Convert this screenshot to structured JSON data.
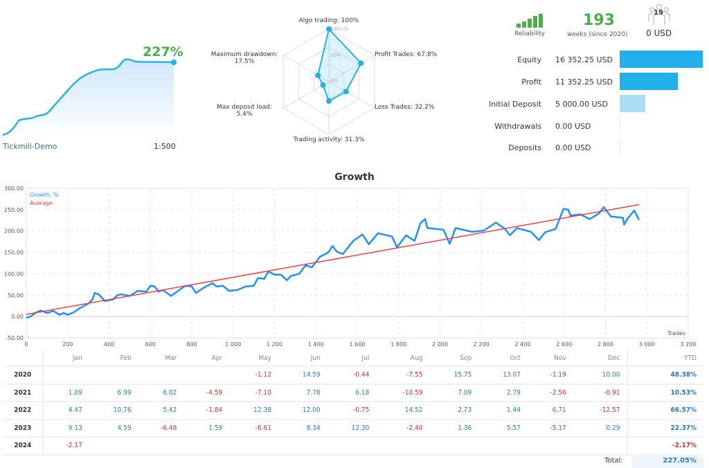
{
  "summary": {
    "growth": "227%",
    "server": "Tickmill-Demo",
    "leverage": "1:500"
  },
  "radar": {
    "scale_labels": [
      "100+%",
      "50%",
      "0%"
    ],
    "axes": [
      {
        "label": "Algo trading: 100%",
        "value": 100
      },
      {
        "label": "Profit Trades: 67.8%",
        "value": 67.8
      },
      {
        "label": "Loss Trades: 32.2%",
        "value": 32.2
      },
      {
        "label": "Trading activity: 31.3%",
        "value": 31.3
      },
      {
        "label_1": "Max deposit load:",
        "label_2": "5.4%",
        "value": 5.4
      },
      {
        "label_1": "Maximum drawdown:",
        "label_2": "17.5%",
        "value": 17.5
      }
    ]
  },
  "stats": {
    "reliability_label": "Reliability",
    "weeks": "193",
    "weeks_label": "weeks (since 2020)",
    "subscribers": "19",
    "subscription_price": "0 USD"
  },
  "finance": [
    {
      "label": "Equity",
      "value": "16 352.25 USD",
      "amount": 16352.25
    },
    {
      "label": "Profit",
      "value": "11 352.25 USD",
      "amount": 11352.25
    },
    {
      "label": "Initial Deposit",
      "value": "5 000.00 USD",
      "amount": 5000
    },
    {
      "label": "Withdrawals",
      "value": "0.00 USD",
      "amount": 0
    },
    {
      "label": "Deposits",
      "value": "0.00 USD",
      "amount": 0
    }
  ],
  "colors": {
    "blue": "#1e90ff",
    "accent": "#22b0ea",
    "red": "#e84040",
    "green": "#4cae4c"
  },
  "chart_data": {
    "type": "line",
    "title": "Growth",
    "xlabel": "Trades",
    "ylabel": "",
    "xlim": [
      0,
      3200
    ],
    "ylim": [
      -50,
      300
    ],
    "xticks": [
      "0",
      "200",
      "400",
      "600",
      "800",
      "1 000",
      "1 200",
      "1 400",
      "1 600",
      "1 800",
      "2 000",
      "2 200",
      "2 400",
      "2 600",
      "2 800",
      "3 000",
      "3 200"
    ],
    "yticks": [
      "300.00",
      "250.00",
      "200.00",
      "150.00",
      "100.00",
      "50.00",
      "0.00",
      "-50.00"
    ],
    "legend": [
      "Growth, %",
      "Average"
    ],
    "legend_position": "top-left",
    "series": [
      {
        "name": "Growth, %",
        "points": [
          [
            0,
            -3
          ],
          [
            20,
            0
          ],
          [
            50,
            10
          ],
          [
            70,
            14
          ],
          [
            100,
            8
          ],
          [
            130,
            13
          ],
          [
            160,
            4
          ],
          [
            180,
            8
          ],
          [
            200,
            4
          ],
          [
            230,
            10
          ],
          [
            260,
            20
          ],
          [
            300,
            30
          ],
          [
            320,
            40
          ],
          [
            330,
            55
          ],
          [
            350,
            52
          ],
          [
            380,
            36
          ],
          [
            420,
            40
          ],
          [
            440,
            50
          ],
          [
            460,
            52
          ],
          [
            500,
            48
          ],
          [
            540,
            60
          ],
          [
            580,
            58
          ],
          [
            600,
            72
          ],
          [
            620,
            70
          ],
          [
            640,
            58
          ],
          [
            660,
            62
          ],
          [
            700,
            48
          ],
          [
            740,
            62
          ],
          [
            770,
            72
          ],
          [
            800,
            70
          ],
          [
            820,
            55
          ],
          [
            860,
            68
          ],
          [
            900,
            78
          ],
          [
            920,
            70
          ],
          [
            950,
            72
          ],
          [
            980,
            60
          ],
          [
            1020,
            62
          ],
          [
            1060,
            70
          ],
          [
            1100,
            72
          ],
          [
            1120,
            90
          ],
          [
            1150,
            88
          ],
          [
            1170,
            105
          ],
          [
            1200,
            98
          ],
          [
            1230,
            98
          ],
          [
            1260,
            85
          ],
          [
            1280,
            95
          ],
          [
            1320,
            100
          ],
          [
            1350,
            120
          ],
          [
            1380,
            115
          ],
          [
            1420,
            140
          ],
          [
            1460,
            150
          ],
          [
            1480,
            165
          ],
          [
            1500,
            152
          ],
          [
            1530,
            146
          ],
          [
            1581,
            177
          ],
          [
            1625,
            192
          ],
          [
            1656,
            169
          ],
          [
            1700,
            195
          ],
          [
            1768,
            187
          ],
          [
            1792,
            162
          ],
          [
            1836,
            190
          ],
          [
            1877,
            177
          ],
          [
            1905,
            218
          ],
          [
            1928,
            228
          ],
          [
            1939,
            207
          ],
          [
            2017,
            203
          ],
          [
            2047,
            170
          ],
          [
            2075,
            207
          ],
          [
            2154,
            198
          ],
          [
            2212,
            201
          ],
          [
            2270,
            220
          ],
          [
            2314,
            205
          ],
          [
            2338,
            190
          ],
          [
            2372,
            207
          ],
          [
            2440,
            198
          ],
          [
            2478,
            179
          ],
          [
            2508,
            197
          ],
          [
            2559,
            205
          ],
          [
            2597,
            252
          ],
          [
            2620,
            250
          ],
          [
            2631,
            236
          ],
          [
            2678,
            239
          ],
          [
            2723,
            228
          ],
          [
            2768,
            241
          ],
          [
            2792,
            256
          ],
          [
            2826,
            234
          ],
          [
            2884,
            231
          ],
          [
            2890,
            215
          ],
          [
            2905,
            228
          ],
          [
            2939,
            248
          ],
          [
            2962,
            226
          ]
        ]
      },
      {
        "name": "Average",
        "points": [
          [
            0,
            5
          ],
          [
            2962,
            262
          ]
        ]
      }
    ]
  },
  "monthly": {
    "headers": [
      "Jan",
      "Feb",
      "Mar",
      "Apr",
      "May",
      "Jun",
      "Jul",
      "Aug",
      "Sep",
      "Oct",
      "Nov",
      "Dec",
      "YTD"
    ],
    "rows": [
      {
        "year": "2020",
        "values": [
          "",
          "",
          "",
          "",
          "-1.12",
          "14.59",
          "-0.44",
          "-7.55",
          "15.75",
          "13.07",
          "-1.19",
          "10.00"
        ],
        "ytd": "48.38%"
      },
      {
        "year": "2021",
        "values": [
          "1.09",
          "6.99",
          "6.02",
          "-4.59",
          "-7.10",
          "7.78",
          "6.18",
          "-10.59",
          "7.09",
          "2.79",
          "-2.56",
          "-0.91"
        ],
        "ytd": "10.53%"
      },
      {
        "year": "2022",
        "values": [
          "4.47",
          "10.76",
          "5.42",
          "-1.84",
          "12.38",
          "12.00",
          "-0.75",
          "14.52",
          "2.73",
          "1.44",
          "6.71",
          "-12.57"
        ],
        "ytd": "66.57%"
      },
      {
        "year": "2023",
        "values": [
          "9.13",
          "4.59",
          "-6.48",
          "1.59",
          "-6.61",
          "8.34",
          "12.30",
          "-2.40",
          "1.36",
          "5.57",
          "-5.17",
          "0.29"
        ],
        "ytd": "22.37%"
      },
      {
        "year": "2024",
        "values": [
          "-2.17",
          "",
          "",
          "",
          "",
          "",
          "",
          "",
          "",
          "",
          "",
          ""
        ],
        "ytd": "-2.17%"
      }
    ],
    "total_label": "Total:",
    "total": "227.05%"
  }
}
